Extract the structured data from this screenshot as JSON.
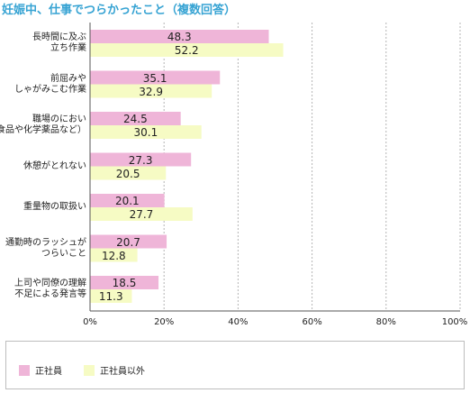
{
  "chart_data": {
    "type": "bar",
    "orientation": "horizontal",
    "title": "妊娠中、仕事でつらかったこと（複数回答）",
    "categories": [
      "長時間に及ぶ\n立ち作業",
      "前屈みや\nしゃがみこむ作業",
      "職場のにおい\n（食品や化学薬品など）",
      "休憩がとれない",
      "重量物の取扱い",
      "通勤時のラッシュが\nつらいこと",
      "上司や同僚の理解\n不足による発言等"
    ],
    "series": [
      {
        "name": "正社員",
        "color": "#efb5d8",
        "values": [
          48.3,
          35.1,
          24.5,
          27.3,
          20.1,
          20.7,
          18.5
        ]
      },
      {
        "name": "正社員以外",
        "color": "#f6fbc4",
        "values": [
          52.2,
          32.9,
          30.1,
          20.5,
          27.7,
          12.8,
          11.3
        ]
      }
    ],
    "xlim": [
      0,
      100
    ],
    "x_ticks": [
      "0%",
      "20%",
      "40%",
      "60%",
      "80%",
      "100%"
    ],
    "grid": true,
    "legend_placement": "bottom"
  }
}
